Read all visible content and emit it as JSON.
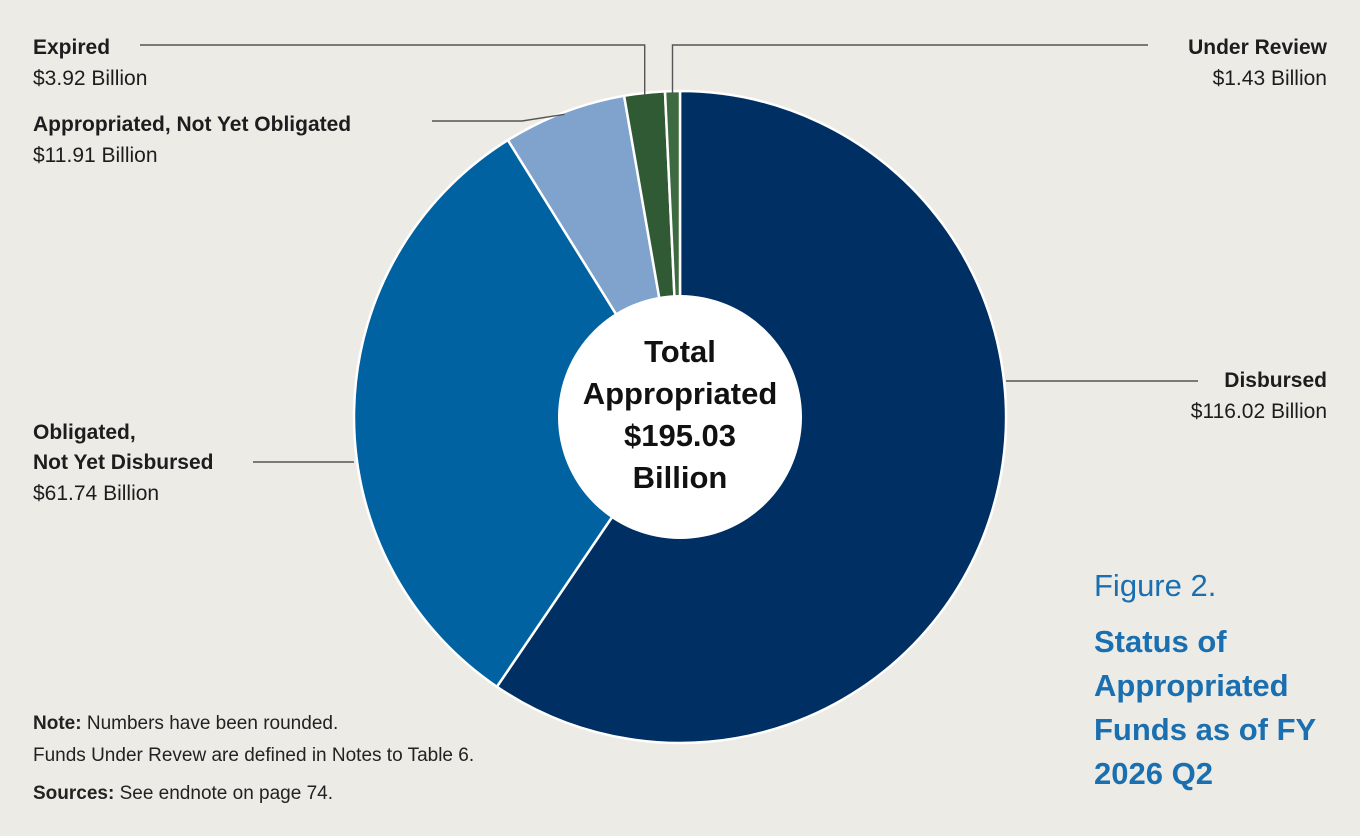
{
  "chart_data": {
    "type": "pie",
    "title": "",
    "center_label": [
      "Total",
      "Appropriated",
      "$195.03",
      "Billion"
    ],
    "slices": [
      {
        "name": "Disbursed",
        "value": 116.02,
        "value_label": "$116.02 Billion",
        "color": "#002f63"
      },
      {
        "name": "Obligated, Not Yet Disbursed",
        "name_lines": [
          "Obligated,",
          "Not Yet Disbursed"
        ],
        "value": 61.74,
        "value_label": "$61.74 Billion",
        "color": "#0062a0"
      },
      {
        "name": "Appropriated, Not Yet Obligated",
        "value": 11.91,
        "value_label": "$11.91 Billion",
        "color": "#7fa3cc"
      },
      {
        "name": "Expired",
        "value": 3.92,
        "value_label": "$3.92 Billion",
        "color": "#2f5a34"
      },
      {
        "name": "Under Review",
        "value": 1.43,
        "value_label": "$1.43 Billion",
        "color": "#3d6b3f"
      }
    ],
    "total": 195.03
  },
  "figure": {
    "number": "Figure 2.",
    "title": "Status of Appropriated Funds as of FY 2026 Q2"
  },
  "notes": {
    "note_label": "Note:",
    "note_text": " Numbers have been rounded.",
    "note_text2": "Funds Under Revew are defined in Notes to Table 6.",
    "sources_label": "Sources:",
    "sources_text": " See endnote on page 74."
  }
}
